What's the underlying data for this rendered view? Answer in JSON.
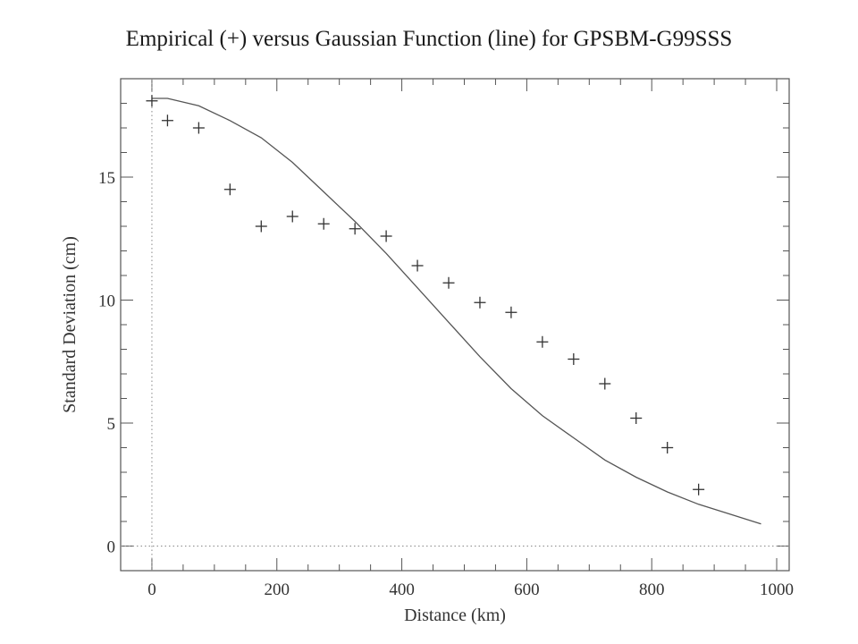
{
  "chart_data": {
    "type": "scatter",
    "title": "Empirical (+) versus Gaussian Function (line) for GPSBM-G99SSS",
    "xlabel": "Distance (km)",
    "ylabel": "Standard Deviation (cm)",
    "xlim": [
      -50,
      1020
    ],
    "ylim": [
      -1,
      19
    ],
    "xticks": [
      0,
      200,
      400,
      600,
      800,
      1000
    ],
    "yticks": [
      0,
      5,
      10,
      15
    ],
    "x_minor_step": 50,
    "y_minor_step": 1,
    "grid": false,
    "reference_lines": {
      "x": 0,
      "y": 0,
      "style": "dotted"
    },
    "series": [
      {
        "kind": "empirical",
        "marker": "+",
        "x": [
          0,
          25,
          75,
          125,
          175,
          225,
          275,
          325,
          375,
          425,
          475,
          525,
          575,
          625,
          675,
          725,
          775,
          825,
          875
        ],
        "y": [
          18.1,
          17.3,
          17.0,
          14.5,
          13.0,
          13.4,
          13.1,
          12.9,
          12.6,
          11.4,
          10.7,
          9.9,
          9.5,
          8.3,
          7.6,
          6.6,
          5.2,
          4.0,
          2.3
        ]
      },
      {
        "kind": "gaussian",
        "marker": "line",
        "x": [
          0,
          25,
          75,
          125,
          175,
          225,
          275,
          325,
          375,
          425,
          475,
          525,
          575,
          625,
          675,
          725,
          775,
          825,
          875,
          925,
          975
        ],
        "y": [
          18.2,
          18.2,
          17.9,
          17.3,
          16.6,
          15.6,
          14.4,
          13.2,
          11.9,
          10.5,
          9.1,
          7.7,
          6.4,
          5.3,
          4.4,
          3.5,
          2.8,
          2.2,
          1.7,
          1.3,
          0.9
        ]
      }
    ]
  },
  "colors": {
    "axis": "#555555",
    "marker": "#333333",
    "line": "#555555",
    "dotted": "#888888"
  }
}
